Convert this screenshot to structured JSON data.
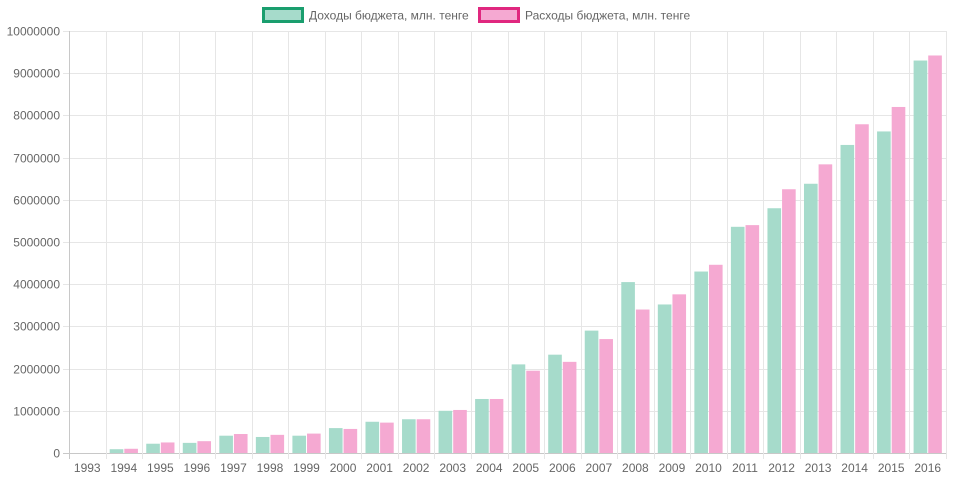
{
  "chart_data": {
    "type": "bar",
    "title": "",
    "xlabel": "",
    "ylabel": "",
    "categories": [
      "1993",
      "1994",
      "1995",
      "1996",
      "1997",
      "1998",
      "1999",
      "2000",
      "2001",
      "2002",
      "2003",
      "2004",
      "2005",
      "2006",
      "2007",
      "2008",
      "2009",
      "2010",
      "2011",
      "2012",
      "2013",
      "2014",
      "2015",
      "2016"
    ],
    "series": [
      {
        "name": "Доходы бюджета, млн. тенге",
        "fill": "#a6dbcb",
        "stroke": "#1a9e6e",
        "values": [
          0,
          90000,
          220000,
          240000,
          410000,
          380000,
          410000,
          590000,
          740000,
          800000,
          1000000,
          1280000,
          2100000,
          2330000,
          2900000,
          4050000,
          3520000,
          4300000,
          5360000,
          5800000,
          6380000,
          7300000,
          7620000,
          9300000
        ]
      },
      {
        "name": "Расходы бюджета, млн. тенге",
        "fill": "#f5a9d2",
        "stroke": "#e0287f",
        "values": [
          0,
          100000,
          250000,
          280000,
          450000,
          430000,
          460000,
          570000,
          720000,
          800000,
          1020000,
          1280000,
          1950000,
          2160000,
          2700000,
          3400000,
          3760000,
          4460000,
          5400000,
          6250000,
          6840000,
          7790000,
          8200000,
          9420000
        ]
      }
    ],
    "y_ticks": [
      "0",
      "1000000",
      "2000000",
      "3000000",
      "4000000",
      "5000000",
      "6000000",
      "7000000",
      "8000000",
      "9000000",
      "10000000"
    ],
    "ylim": [
      0,
      10000000
    ],
    "grid": true,
    "legend_position": "top-center"
  }
}
